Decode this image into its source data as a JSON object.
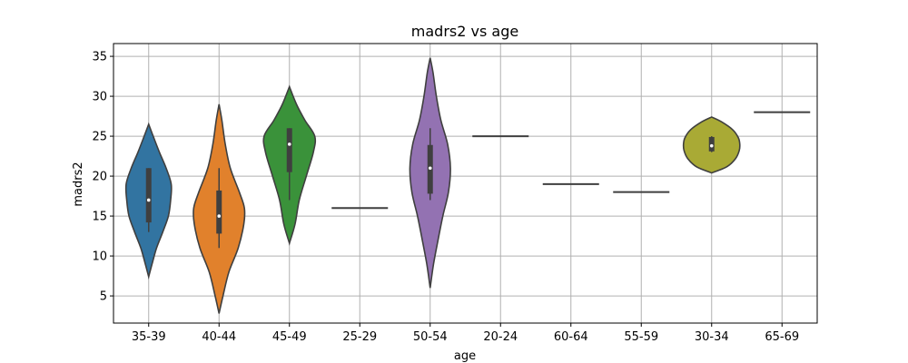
{
  "chart_data": {
    "type": "violin",
    "title": "madrs2 vs age",
    "xlabel": "age",
    "ylabel": "madrs2",
    "ylim": [
      1.6,
      36.6
    ],
    "yticks": [
      5,
      10,
      15,
      20,
      25,
      30,
      35
    ],
    "grid": true,
    "categories": [
      "35-39",
      "40-44",
      "45-49",
      "25-29",
      "50-54",
      "20-24",
      "60-64",
      "55-59",
      "30-34",
      "65-69"
    ],
    "violins": [
      {
        "category": "35-39",
        "color": "#3274a1",
        "median": 17,
        "q1": 14.2,
        "q3": 21,
        "whisker_low": 13,
        "whisker_high": 21,
        "ymin": 7.4,
        "ymax": 26.5,
        "density": [
          [
            7.4,
            0
          ],
          [
            9,
            0.12
          ],
          [
            11,
            0.28
          ],
          [
            13,
            0.5
          ],
          [
            15,
            0.7
          ],
          [
            17,
            0.78
          ],
          [
            19,
            0.8
          ],
          [
            21,
            0.62
          ],
          [
            23,
            0.38
          ],
          [
            25,
            0.16
          ],
          [
            26.5,
            0
          ]
        ]
      },
      {
        "category": "40-44",
        "color": "#e1812c",
        "median": 15,
        "q1": 12.8,
        "q3": 18.2,
        "whisker_low": 11,
        "whisker_high": 21,
        "ymin": 2.8,
        "ymax": 29,
        "density": [
          [
            2.8,
            0
          ],
          [
            5,
            0.14
          ],
          [
            8,
            0.35
          ],
          [
            11,
            0.68
          ],
          [
            14,
            0.88
          ],
          [
            16,
            0.9
          ],
          [
            18,
            0.72
          ],
          [
            21,
            0.4
          ],
          [
            24,
            0.22
          ],
          [
            27,
            0.1
          ],
          [
            29,
            0
          ]
        ]
      },
      {
        "category": "45-49",
        "color": "#3a923a",
        "median": 24,
        "q1": 20.5,
        "q3": 26,
        "whisker_low": 17,
        "whisker_high": 26,
        "ymin": 11.6,
        "ymax": 31.2,
        "density": [
          [
            11.6,
            0
          ],
          [
            14,
            0.2
          ],
          [
            17,
            0.35
          ],
          [
            20,
            0.6
          ],
          [
            23,
            0.85
          ],
          [
            25,
            0.9
          ],
          [
            27,
            0.55
          ],
          [
            29,
            0.25
          ],
          [
            31.2,
            0
          ]
        ]
      },
      {
        "category": "25-29",
        "color": "#c03d3e",
        "value": 16
      },
      {
        "category": "50-54",
        "color": "#9372b2",
        "median": 21,
        "q1": 17.8,
        "q3": 23.9,
        "whisker_low": 17,
        "whisker_high": 26,
        "ymin": 6,
        "ymax": 34.8,
        "density": [
          [
            6,
            0
          ],
          [
            9,
            0.12
          ],
          [
            12,
            0.28
          ],
          [
            15,
            0.45
          ],
          [
            18,
            0.65
          ],
          [
            21,
            0.72
          ],
          [
            24,
            0.62
          ],
          [
            27,
            0.38
          ],
          [
            30,
            0.22
          ],
          [
            33,
            0.1
          ],
          [
            34.8,
            0
          ]
        ]
      },
      {
        "category": "20-24",
        "color": "#845b53",
        "value": 25
      },
      {
        "category": "60-64",
        "color": "#d684bd",
        "value": 19
      },
      {
        "category": "55-59",
        "color": "#7f7f7f",
        "value": 18
      },
      {
        "category": "30-34",
        "color": "#a9aa35",
        "median": 23.8,
        "q1": 23.1,
        "q3": 24.9,
        "whisker_low": 23,
        "whisker_high": 25,
        "ymin": 20.4,
        "ymax": 27.4,
        "density": [
          [
            20.4,
            0
          ],
          [
            21.2,
            0.55
          ],
          [
            22.2,
            0.85
          ],
          [
            23.2,
            0.98
          ],
          [
            24,
            1
          ],
          [
            24.8,
            0.95
          ],
          [
            25.8,
            0.75
          ],
          [
            26.8,
            0.35
          ],
          [
            27.4,
            0
          ]
        ]
      },
      {
        "category": "65-69",
        "color": "#3d9fba",
        "value": 28
      }
    ]
  }
}
